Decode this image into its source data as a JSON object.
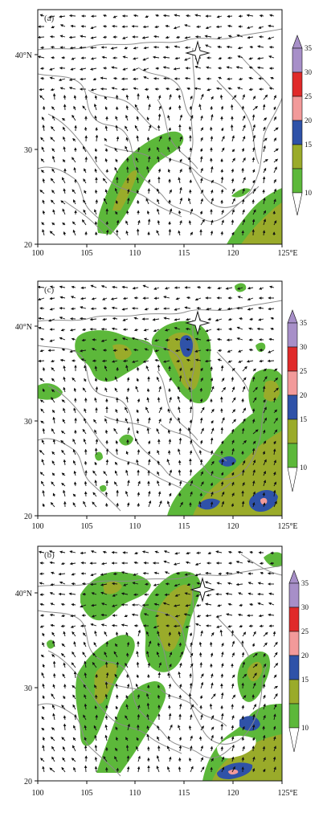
{
  "panels": [
    {
      "id": "a",
      "label": "(a)",
      "x_ticks": [
        "100",
        "105",
        "110",
        "115",
        "120",
        "125°E"
      ],
      "y_ticks": [
        "20",
        "30",
        "40°N"
      ]
    },
    {
      "id": "c",
      "label": "(c)",
      "x_ticks": [
        "100",
        "105",
        "110",
        "115",
        "120",
        "125°E"
      ],
      "y_ticks": [
        "20",
        "30",
        "40°N"
      ]
    },
    {
      "id": "b",
      "label": "(b)",
      "x_ticks": [
        "100",
        "105",
        "110",
        "115",
        "120",
        "125°E"
      ],
      "y_ticks": [
        "20",
        "30",
        "40°N"
      ]
    }
  ],
  "colorbar": {
    "levels": [
      "10",
      "15",
      "20",
      "25",
      "30",
      "35"
    ],
    "colors": [
      "#5cb83a",
      "#9aab2a",
      "#2f52a8",
      "#f29a9a",
      "#e02a2a",
      "#a78fc8"
    ],
    "extend": "both"
  },
  "map": {
    "lon_range": [
      100,
      125
    ],
    "lat_range": [
      20,
      44
    ],
    "marker": {
      "type": "star",
      "lon": 116.3,
      "lat": 39.9
    }
  },
  "colors": {
    "boundary": "#8c8c8c",
    "arrow": "#111111"
  }
}
